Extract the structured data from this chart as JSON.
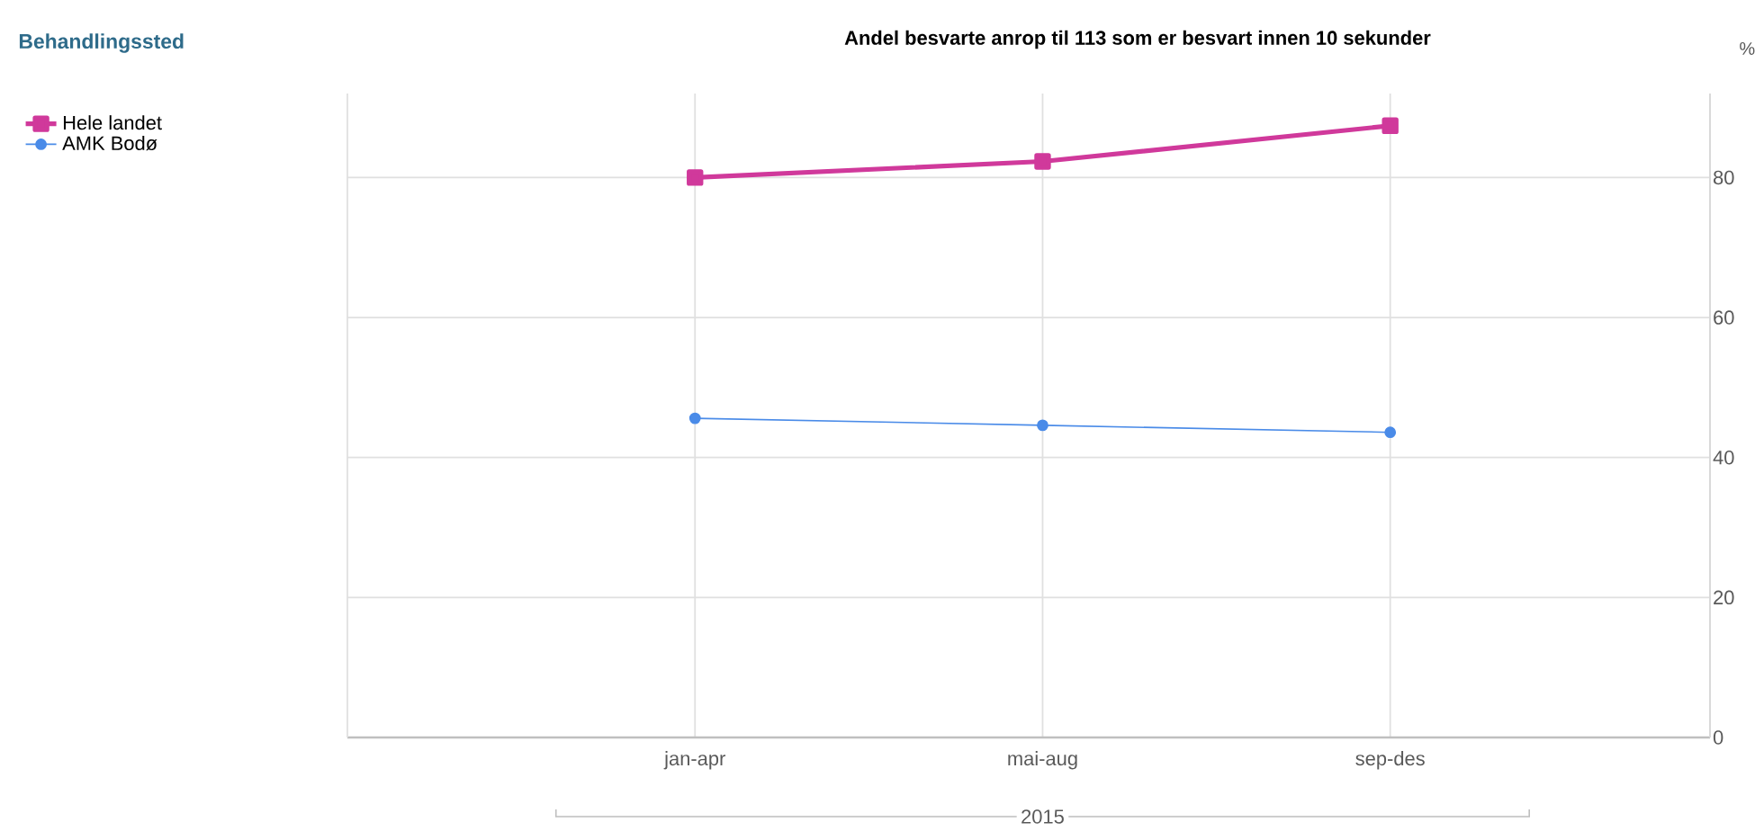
{
  "chart_data": {
    "type": "line",
    "title": "Andel besvarte anrop til 113 som er besvart innen 10 sekunder",
    "legend_title": "Behandlingssted",
    "ylabel": "%",
    "xlabel": "2015",
    "categories": [
      "jan-apr",
      "mai-aug",
      "sep-des"
    ],
    "series": [
      {
        "name": "Hele landet",
        "color": "#d0399b",
        "marker": "square",
        "values": [
          80,
          82.3,
          87.4
        ]
      },
      {
        "name": "AMK Bodø",
        "color": "#4a8be8",
        "marker": "circle",
        "values": [
          45.6,
          44.6,
          43.6
        ]
      }
    ],
    "ylim": [
      0,
      92
    ],
    "yticks": [
      0,
      20,
      40,
      60,
      80
    ],
    "grid": true,
    "legend": "top left"
  }
}
